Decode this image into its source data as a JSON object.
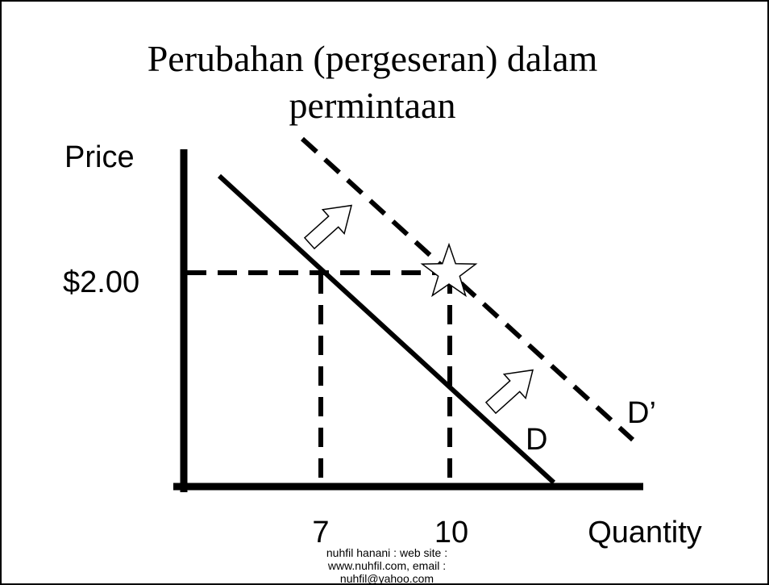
{
  "title": [
    "Perubahan (pergeseran) dalam",
    "permintaan"
  ],
  "y_axis_label": "Price",
  "x_axis_label": "Quantity",
  "price_label": "$2.00",
  "quantity_labels": [
    "7",
    "10"
  ],
  "curves": [
    "D",
    "D’"
  ],
  "footer": [
    "nuhfil hanani : web site :",
    "www.nuhfil.com, email :",
    "nuhfil@yahoo.com"
  ]
}
